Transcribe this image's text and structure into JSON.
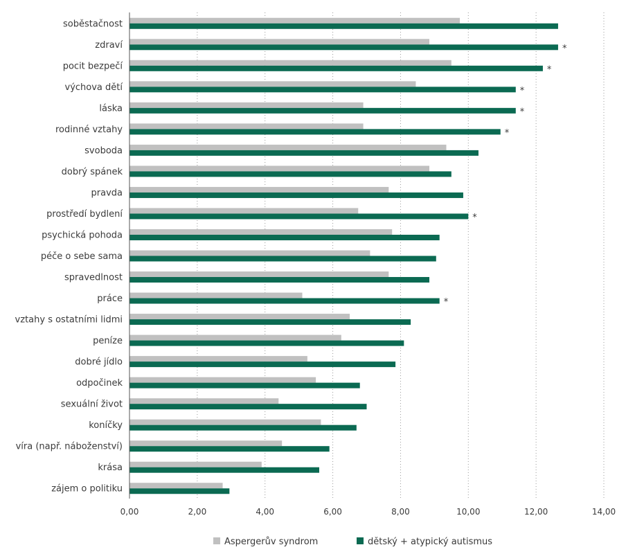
{
  "chart_data": {
    "type": "bar",
    "orientation": "horizontal",
    "categories": [
      "soběstačnost",
      "zdraví",
      "pocit bezpečí",
      "výchova dětí",
      "láska",
      "rodinné vztahy",
      "svoboda",
      "dobrý spánek",
      "pravda",
      "prostředí bydlení",
      "psychická pohoda",
      "péče o sebe sama",
      "spravedlnost",
      "práce",
      "vztahy s ostatními lidmi",
      "peníze",
      "dobré jídlo",
      "odpočinek",
      "sexuální život",
      "koníčky",
      "víra (např. náboženství)",
      "krása",
      "zájem o politiku"
    ],
    "series": [
      {
        "name": "Aspergerův syndrom",
        "color": "#c0c0c0",
        "values": [
          9.75,
          8.85,
          9.5,
          8.45,
          6.9,
          6.9,
          9.35,
          8.85,
          7.65,
          6.75,
          7.75,
          7.1,
          7.65,
          5.1,
          6.5,
          6.25,
          5.25,
          5.5,
          4.4,
          5.65,
          4.5,
          3.9,
          2.75
        ]
      },
      {
        "name": "dětský + atypický autismus",
        "color": "#0b6a52",
        "values": [
          12.65,
          12.65,
          12.2,
          11.4,
          11.4,
          10.95,
          10.3,
          9.5,
          9.85,
          10.0,
          9.15,
          9.05,
          8.85,
          9.15,
          8.3,
          8.1,
          7.85,
          6.8,
          7.0,
          6.7,
          5.9,
          5.6,
          2.95
        ]
      }
    ],
    "significance_marker": "*",
    "significant": [
      false,
      true,
      true,
      true,
      true,
      true,
      false,
      false,
      false,
      true,
      false,
      false,
      false,
      true,
      false,
      false,
      false,
      false,
      false,
      false,
      false,
      false,
      false
    ],
    "x_ticks": [
      "0,00",
      "2,00",
      "4,00",
      "6,00",
      "8,00",
      "10,00",
      "12,00",
      "14,00"
    ],
    "xlim": [
      0,
      14
    ],
    "grid": "vertical dotted",
    "legend_position": "bottom-center"
  }
}
